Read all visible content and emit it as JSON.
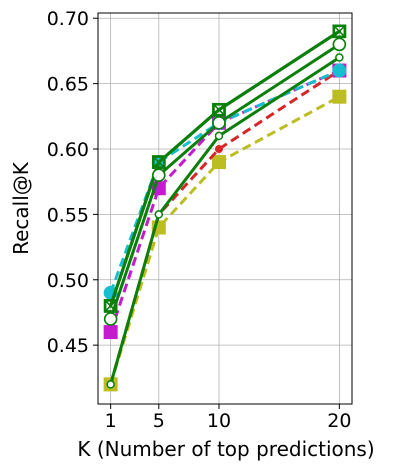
{
  "chart_data": {
    "type": "line",
    "title": "",
    "xlabel": "K (Number of top predictions)",
    "ylabel": "Recall@K",
    "x": [
      1,
      5,
      10,
      20
    ],
    "xlim": [
      -0.05,
      21.05
    ],
    "ylim": [
      0.405,
      0.704
    ],
    "xticks": [
      1,
      5,
      10,
      20
    ],
    "yticks": [
      0.45,
      0.5,
      0.55,
      0.6,
      0.65,
      0.7
    ],
    "ytick_labels": [
      "0.45",
      "0.50",
      "0.55",
      "0.60",
      "0.65",
      "0.70"
    ],
    "grid": true,
    "legend": "none",
    "series": [
      {
        "style": "dashed",
        "color": "#bcbd22",
        "marker": "square",
        "values": [
          0.42,
          0.54,
          0.59,
          0.64
        ]
      },
      {
        "style": "dashed",
        "color": "#d62728",
        "marker": "dot",
        "values": [
          0.42,
          0.55,
          0.6,
          0.66
        ]
      },
      {
        "style": "dashed",
        "color": "#c51bcf",
        "marker": "square",
        "values": [
          0.46,
          0.57,
          0.62,
          0.66
        ]
      },
      {
        "style": "dashed",
        "color": "#17becf",
        "marker": "circle",
        "values": [
          0.49,
          0.59,
          0.62,
          0.66
        ]
      },
      {
        "style": "solid",
        "color": "#0a7f0a",
        "marker": "square-x",
        "values": [
          0.48,
          0.59,
          0.63,
          0.69
        ]
      },
      {
        "style": "solid",
        "color": "#0a7f0a",
        "marker": "square-x",
        "values": [
          0.48,
          0.59,
          0.63,
          0.69
        ]
      },
      {
        "style": "solid",
        "color": "#0a7f0a",
        "marker": "square-dot",
        "values": [
          0.48,
          0.59,
          0.63,
          0.69
        ]
      },
      {
        "style": "solid",
        "color": "#0a7f0a",
        "marker": "open-circle",
        "values": [
          0.47,
          0.58,
          0.62,
          0.68
        ]
      },
      {
        "style": "solid",
        "color": "#0a7f0a",
        "marker": "small-circle",
        "values": [
          0.42,
          0.55,
          0.61,
          0.67
        ]
      }
    ]
  }
}
